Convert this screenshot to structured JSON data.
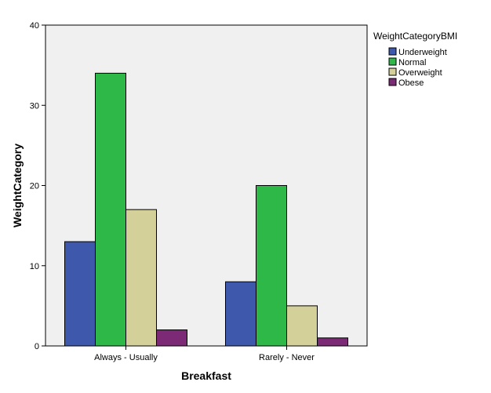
{
  "chart_data": {
    "type": "bar",
    "xlabel": "Breakfast",
    "ylabel": "WeightCategory",
    "categories": [
      "Always - Usually",
      "Rarely  - Never"
    ],
    "ylim": [
      0,
      40
    ],
    "yticks": [
      0,
      10,
      20,
      30,
      40
    ],
    "grid": false,
    "legend_title": "WeightCategoryBMI",
    "legend_position": "top-right",
    "plot_background": "#f0f0f0",
    "series": [
      {
        "name": "Underweight",
        "color": "#3e58ac",
        "values": [
          13,
          8
        ]
      },
      {
        "name": "Normal",
        "color": "#2eb848",
        "values": [
          34,
          20
        ]
      },
      {
        "name": "Overweight",
        "color": "#d4d09a",
        "values": [
          17,
          5
        ]
      },
      {
        "name": "Obese",
        "color": "#7c2a76",
        "values": [
          2,
          1
        ]
      }
    ]
  }
}
